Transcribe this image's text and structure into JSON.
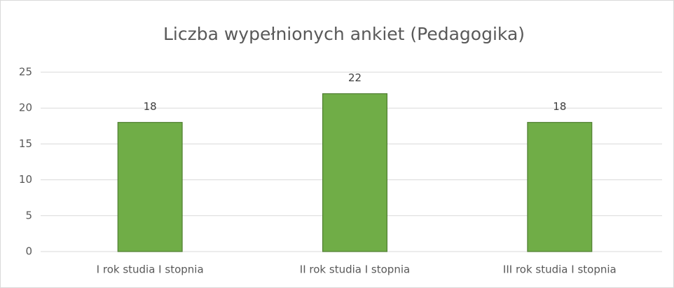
{
  "chart_data": {
    "type": "bar",
    "title": "Liczba wypełnionych ankiet (Pedagogika)",
    "categories": [
      "I rok studia I stopnia",
      "II rok studia I stopnia",
      "III rok studia I stopnia"
    ],
    "values": [
      18,
      22,
      18
    ],
    "color": "#70ad47",
    "ylim": [
      0,
      25
    ],
    "yticks": [
      0,
      5,
      10,
      15,
      20,
      25
    ],
    "grid": true
  }
}
